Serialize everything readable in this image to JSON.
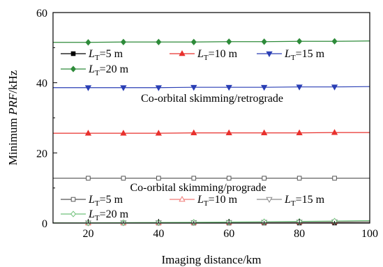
{
  "chart_data": {
    "type": "line",
    "xlabel": "Imaging distance/km",
    "ylabel_prefix": "Minimum ",
    "ylabel_italic": "PRF",
    "ylabel_suffix": "/kHz",
    "xlim": [
      10,
      100
    ],
    "ylim": [
      0,
      60
    ],
    "x_ticks": [
      20,
      40,
      60,
      80,
      100
    ],
    "y_ticks": [
      0,
      20,
      40,
      60
    ],
    "x": [
      10,
      20,
      30,
      40,
      50,
      60,
      70,
      80,
      90,
      100
    ],
    "groups": [
      {
        "annotation": "Co-orbital skimming/retrograde",
        "legend_placement": "upper-left",
        "series": [
          {
            "label_main": "L",
            "label_sub": "T",
            "label_rest": "=5 m",
            "color": "#000000",
            "marker": "square-filled",
            "values": [
              0.03,
              0.03,
              0.03,
              0.03,
              0.03,
              0.03,
              0.03,
              0.03,
              0.03,
              0.03
            ]
          },
          {
            "label_main": "L",
            "label_sub": "T",
            "label_rest": "=10 m",
            "color": "#e8312d",
            "marker": "triangle-up-filled",
            "values": [
              25.6,
              25.6,
              25.6,
              25.6,
              25.7,
              25.7,
              25.7,
              25.7,
              25.8,
              25.8
            ]
          },
          {
            "label_main": "L",
            "label_sub": "T",
            "label_rest": "=15 m",
            "color": "#2a3fb5",
            "marker": "triangle-down-filled",
            "values": [
              38.6,
              38.6,
              38.6,
              38.6,
              38.7,
              38.7,
              38.7,
              38.8,
              38.8,
              38.9
            ]
          },
          {
            "label_main": "L",
            "label_sub": "T",
            "label_rest": "=20 m",
            "color": "#2e8b3a",
            "marker": "diamond-filled",
            "values": [
              51.5,
              51.5,
              51.6,
              51.6,
              51.6,
              51.7,
              51.7,
              51.8,
              51.8,
              51.9
            ]
          }
        ]
      },
      {
        "annotation": "Co-orbital skimming/prograde",
        "legend_placement": "lower-left",
        "series": [
          {
            "label_main": "L",
            "label_sub": "T",
            "label_rest": "=5 m",
            "color": "#555555",
            "marker": "square-open",
            "values": [
              12.8,
              12.8,
              12.8,
              12.8,
              12.8,
              12.8,
              12.8,
              12.8,
              12.8,
              12.8
            ]
          },
          {
            "label_main": "L",
            "label_sub": "T",
            "label_rest": "=10 m",
            "color": "#f07a77",
            "marker": "triangle-up-open",
            "values": [
              0.05,
              0.07,
              0.09,
              0.12,
              0.15,
              0.19,
              0.23,
              0.28,
              0.33,
              0.4
            ]
          },
          {
            "label_main": "L",
            "label_sub": "T",
            "label_rest": "=15 m",
            "color": "#8a8a8a",
            "marker": "triangle-down-open",
            "values": [
              0.04,
              0.06,
              0.09,
              0.12,
              0.16,
              0.2,
              0.25,
              0.3,
              0.36,
              0.42
            ]
          },
          {
            "label_main": "L",
            "label_sub": "T",
            "label_rest": "=20 m",
            "color": "#6fc17a",
            "marker": "diamond-open",
            "values": [
              0.05,
              0.08,
              0.12,
              0.17,
              0.23,
              0.3,
              0.38,
              0.47,
              0.57,
              0.7
            ]
          }
        ]
      }
    ]
  }
}
